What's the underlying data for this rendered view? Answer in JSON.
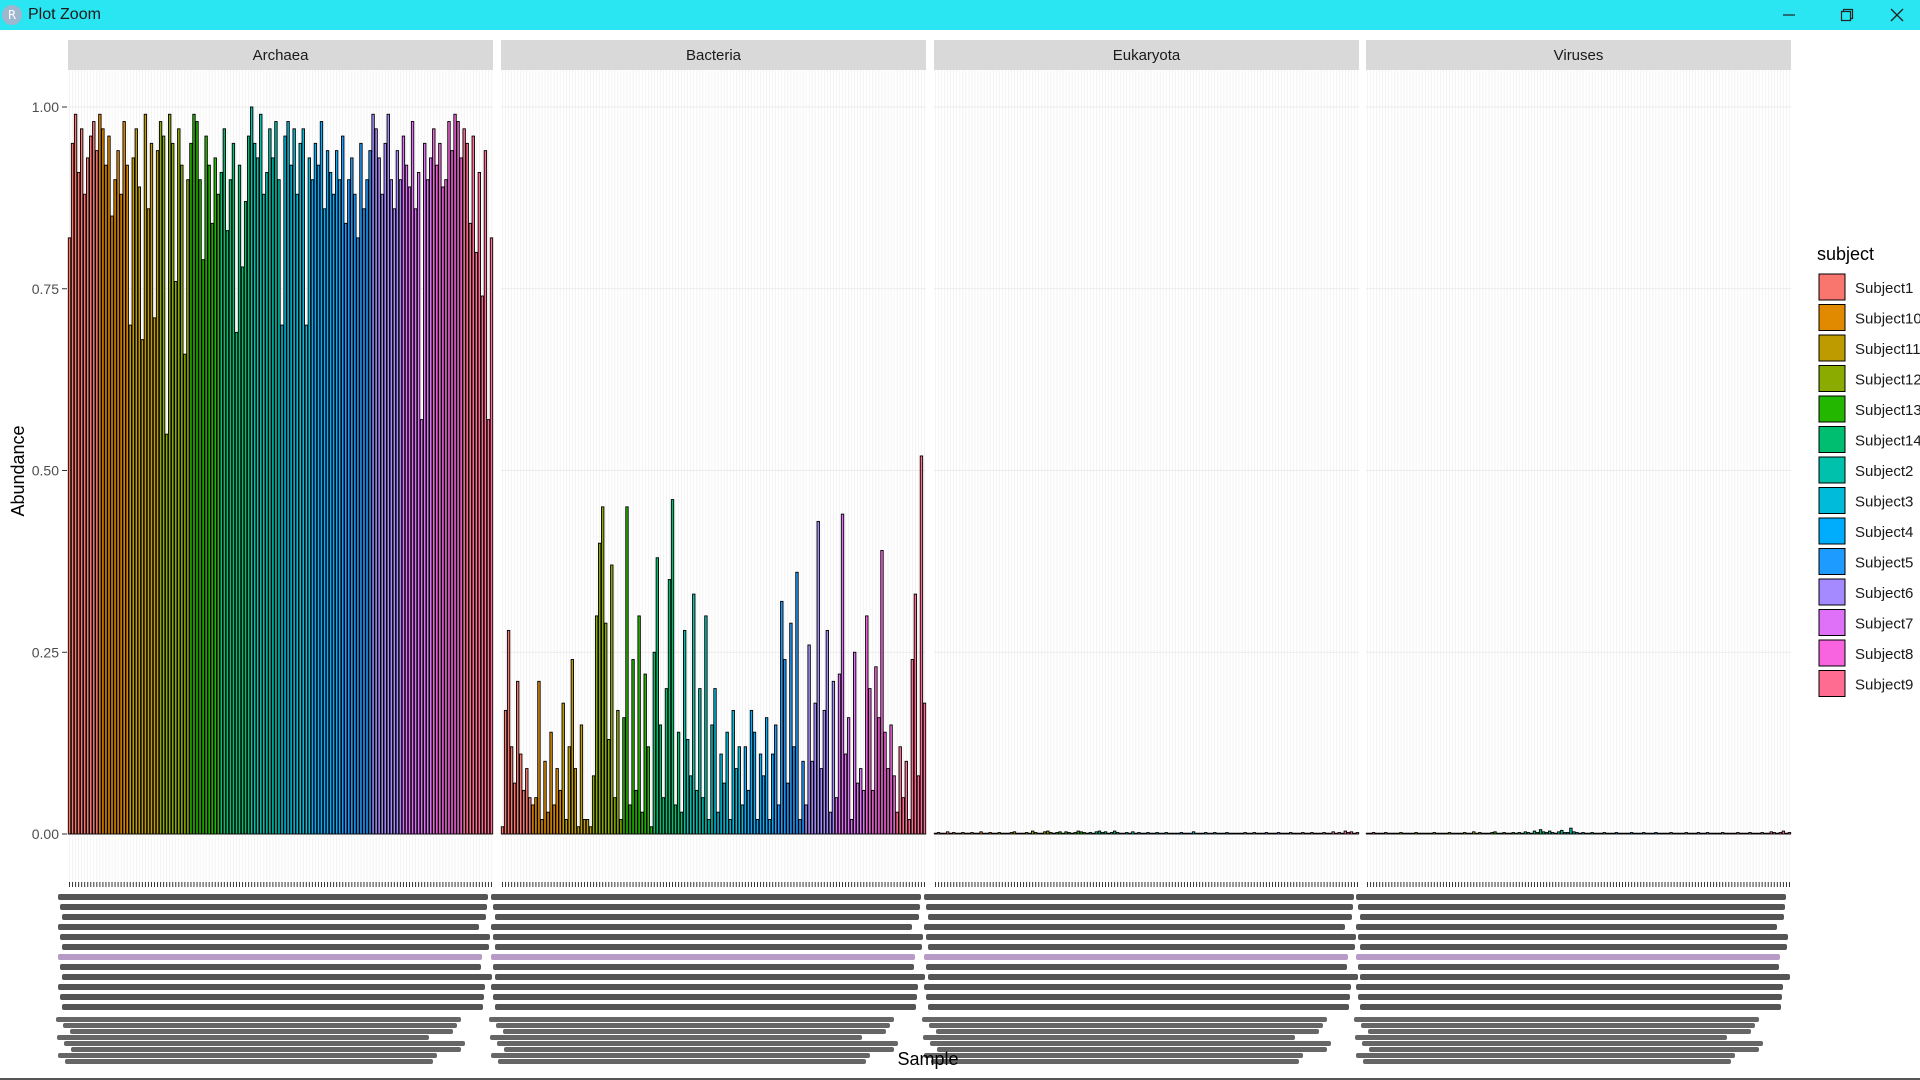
{
  "window": {
    "title": "Plot Zoom",
    "app_icon_letter": "R",
    "controls": [
      "minimize",
      "restore",
      "close"
    ]
  },
  "colors": {
    "titlebar": "#2ae6f2",
    "strip": "#d9d9d9",
    "bar_outline": "#000000"
  },
  "chart_data": {
    "type": "bar",
    "facets": [
      "Archaea",
      "Bacteria",
      "Eukaryota",
      "Viruses"
    ],
    "xlabel": "Sample",
    "ylabel": "Abundance",
    "ylim": [
      0,
      1.05
    ],
    "yticks": [
      0.0,
      0.25,
      0.5,
      0.75,
      1.0
    ],
    "ytick_labels": [
      "0.00",
      "0.25",
      "0.50",
      "0.75",
      "1.00"
    ],
    "grid": true,
    "legend": {
      "title": "subject",
      "position": "right",
      "entries": [
        {
          "label": "Subject1",
          "color": "#F8766D"
        },
        {
          "label": "Subject10",
          "color": "#E18A00"
        },
        {
          "label": "Subject11",
          "color": "#BE9C00"
        },
        {
          "label": "Subject12",
          "color": "#8CAB00"
        },
        {
          "label": "Subject13",
          "color": "#24B700"
        },
        {
          "label": "Subject14",
          "color": "#00BE70"
        },
        {
          "label": "Subject2",
          "color": "#00C1AB"
        },
        {
          "label": "Subject3",
          "color": "#00BBDA"
        },
        {
          "label": "Subject4",
          "color": "#00ACFC"
        },
        {
          "label": "Subject5",
          "color": "#1E9BFF"
        },
        {
          "label": "Subject6",
          "color": "#A58AFF"
        },
        {
          "label": "Subject7",
          "color": "#DF70F8"
        },
        {
          "label": "Subject8",
          "color": "#F863DF"
        },
        {
          "label": "Subject9",
          "color": "#FF6C91"
        }
      ]
    },
    "group_order": [
      0,
      1,
      2,
      3,
      4,
      5,
      6,
      7,
      8,
      9,
      10,
      11,
      12,
      13
    ],
    "group_sizes": [
      10,
      10,
      10,
      10,
      10,
      10,
      10,
      10,
      10,
      10,
      10,
      10,
      10,
      10
    ],
    "series": [
      {
        "name": "Archaea",
        "values": [
          0.82,
          0.95,
          0.99,
          0.91,
          0.97,
          0.88,
          0.93,
          0.96,
          0.98,
          0.94,
          0.99,
          0.97,
          0.92,
          0.96,
          0.85,
          0.9,
          0.94,
          0.88,
          0.98,
          0.92,
          0.7,
          0.93,
          0.97,
          0.89,
          0.68,
          0.99,
          0.86,
          0.95,
          0.71,
          0.94,
          0.98,
          0.96,
          0.55,
          0.99,
          0.95,
          0.76,
          0.97,
          0.92,
          0.66,
          0.9,
          0.95,
          0.99,
          0.98,
          0.9,
          0.79,
          0.96,
          0.92,
          0.84,
          0.93,
          0.88,
          0.91,
          0.97,
          0.83,
          0.9,
          0.95,
          0.69,
          0.92,
          0.78,
          0.87,
          0.96,
          1.0,
          0.95,
          0.93,
          0.99,
          0.88,
          0.91,
          0.97,
          0.93,
          0.98,
          0.9,
          0.7,
          0.96,
          0.98,
          0.92,
          0.97,
          0.88,
          0.95,
          0.97,
          0.7,
          0.93,
          0.9,
          0.95,
          0.92,
          0.98,
          0.86,
          0.94,
          0.91,
          0.88,
          0.94,
          0.9,
          0.96,
          0.84,
          0.9,
          0.93,
          0.88,
          0.82,
          0.95,
          0.86,
          0.9,
          0.94,
          0.99,
          0.97,
          0.93,
          0.88,
          0.95,
          0.99,
          0.9,
          0.86,
          0.94,
          0.9,
          0.96,
          0.92,
          0.89,
          0.98,
          0.86,
          0.91,
          0.57,
          0.95,
          0.9,
          0.93,
          0.97,
          0.92,
          0.95,
          0.89,
          0.9,
          0.98,
          0.94,
          0.99,
          0.98,
          0.93,
          0.97,
          0.95,
          0.84,
          0.96,
          0.8,
          0.91,
          0.74,
          0.94,
          0.57,
          0.82
        ]
      },
      {
        "name": "Bacteria",
        "values": [
          0.01,
          0.17,
          0.28,
          0.12,
          0.07,
          0.21,
          0.11,
          0.06,
          0.09,
          0.05,
          0.04,
          0.05,
          0.21,
          0.02,
          0.1,
          0.03,
          0.14,
          0.04,
          0.09,
          0.06,
          0.18,
          0.02,
          0.12,
          0.24,
          0.09,
          0.01,
          0.15,
          0.02,
          0.02,
          0.01,
          0.08,
          0.3,
          0.4,
          0.45,
          0.29,
          0.13,
          0.37,
          0.05,
          0.17,
          0.02,
          0.16,
          0.45,
          0.04,
          0.24,
          0.06,
          0.3,
          0.03,
          0.22,
          0.12,
          0.01,
          0.25,
          0.38,
          0.15,
          0.05,
          0.2,
          0.35,
          0.46,
          0.04,
          0.14,
          0.03,
          0.28,
          0.13,
          0.08,
          0.33,
          0.06,
          0.2,
          0.05,
          0.3,
          0.02,
          0.15,
          0.2,
          0.03,
          0.11,
          0.07,
          0.14,
          0.02,
          0.17,
          0.09,
          0.12,
          0.04,
          0.12,
          0.06,
          0.17,
          0.14,
          0.02,
          0.11,
          0.08,
          0.16,
          0.02,
          0.11,
          0.15,
          0.04,
          0.32,
          0.24,
          0.07,
          0.29,
          0.12,
          0.36,
          0.02,
          0.1,
          0.04,
          0.26,
          0.1,
          0.18,
          0.43,
          0.09,
          0.17,
          0.28,
          0.03,
          0.21,
          0.05,
          0.22,
          0.44,
          0.11,
          0.16,
          0.02,
          0.25,
          0.07,
          0.09,
          0.06,
          0.3,
          0.2,
          0.06,
          0.23,
          0.16,
          0.39,
          0.14,
          0.09,
          0.15,
          0.08,
          0.03,
          0.12,
          0.05,
          0.1,
          0.02,
          0.24,
          0.33,
          0.08,
          0.52,
          0.18
        ]
      },
      {
        "name": "Eukaryota",
        "values": [
          0.001,
          0.002,
          0.001,
          0.001,
          0.003,
          0.001,
          0.002,
          0.001,
          0.001,
          0.002,
          0.001,
          0.001,
          0.002,
          0.001,
          0.001,
          0.003,
          0.001,
          0.001,
          0.002,
          0.001,
          0.001,
          0.002,
          0.001,
          0.001,
          0.001,
          0.002,
          0.003,
          0.001,
          0.001,
          0.001,
          0.002,
          0.001,
          0.004,
          0.002,
          0.001,
          0.001,
          0.003,
          0.004,
          0.002,
          0.001,
          0.002,
          0.003,
          0.001,
          0.003,
          0.002,
          0.001,
          0.002,
          0.004,
          0.003,
          0.002,
          0.001,
          0.002,
          0.001,
          0.003,
          0.004,
          0.002,
          0.003,
          0.001,
          0.002,
          0.004,
          0.002,
          0.001,
          0.001,
          0.002,
          0.001,
          0.003,
          0.001,
          0.002,
          0.001,
          0.001,
          0.002,
          0.001,
          0.001,
          0.002,
          0.001,
          0.001,
          0.002,
          0.001,
          0.001,
          0.001,
          0.001,
          0.002,
          0.001,
          0.001,
          0.001,
          0.003,
          0.001,
          0.001,
          0.001,
          0.002,
          0.001,
          0.001,
          0.002,
          0.001,
          0.001,
          0.001,
          0.002,
          0.001,
          0.001,
          0.001,
          0.001,
          0.001,
          0.002,
          0.001,
          0.001,
          0.002,
          0.001,
          0.001,
          0.001,
          0.002,
          0.001,
          0.001,
          0.001,
          0.002,
          0.001,
          0.001,
          0.001,
          0.002,
          0.001,
          0.001,
          0.001,
          0.002,
          0.001,
          0.001,
          0.002,
          0.001,
          0.001,
          0.001,
          0.002,
          0.001,
          0.001,
          0.003,
          0.001,
          0.002,
          0.001,
          0.004,
          0.002,
          0.003,
          0.001,
          0.002
        ]
      },
      {
        "name": "Viruses",
        "values": [
          0.001,
          0.001,
          0.002,
          0.001,
          0.001,
          0.001,
          0.002,
          0.001,
          0.001,
          0.001,
          0.001,
          0.002,
          0.001,
          0.001,
          0.001,
          0.001,
          0.002,
          0.001,
          0.001,
          0.001,
          0.001,
          0.001,
          0.002,
          0.001,
          0.001,
          0.001,
          0.001,
          0.002,
          0.001,
          0.001,
          0.001,
          0.001,
          0.002,
          0.001,
          0.001,
          0.003,
          0.001,
          0.002,
          0.001,
          0.001,
          0.001,
          0.002,
          0.003,
          0.001,
          0.001,
          0.002,
          0.001,
          0.001,
          0.002,
          0.001,
          0.002,
          0.001,
          0.003,
          0.002,
          0.001,
          0.004,
          0.002,
          0.006,
          0.003,
          0.002,
          0.004,
          0.002,
          0.001,
          0.003,
          0.005,
          0.002,
          0.002,
          0.008,
          0.003,
          0.002,
          0.001,
          0.002,
          0.001,
          0.001,
          0.002,
          0.001,
          0.001,
          0.001,
          0.002,
          0.001,
          0.001,
          0.001,
          0.002,
          0.001,
          0.001,
          0.001,
          0.001,
          0.002,
          0.001,
          0.001,
          0.001,
          0.002,
          0.001,
          0.001,
          0.001,
          0.002,
          0.001,
          0.001,
          0.001,
          0.001,
          0.002,
          0.001,
          0.001,
          0.001,
          0.001,
          0.002,
          0.001,
          0.001,
          0.001,
          0.002,
          0.001,
          0.001,
          0.002,
          0.001,
          0.001,
          0.001,
          0.001,
          0.002,
          0.001,
          0.001,
          0.001,
          0.001,
          0.002,
          0.001,
          0.001,
          0.001,
          0.002,
          0.001,
          0.001,
          0.001,
          0.002,
          0.001,
          0.001,
          0.003,
          0.002,
          0.001,
          0.002,
          0.004,
          0.001,
          0.002
        ]
      }
    ]
  }
}
